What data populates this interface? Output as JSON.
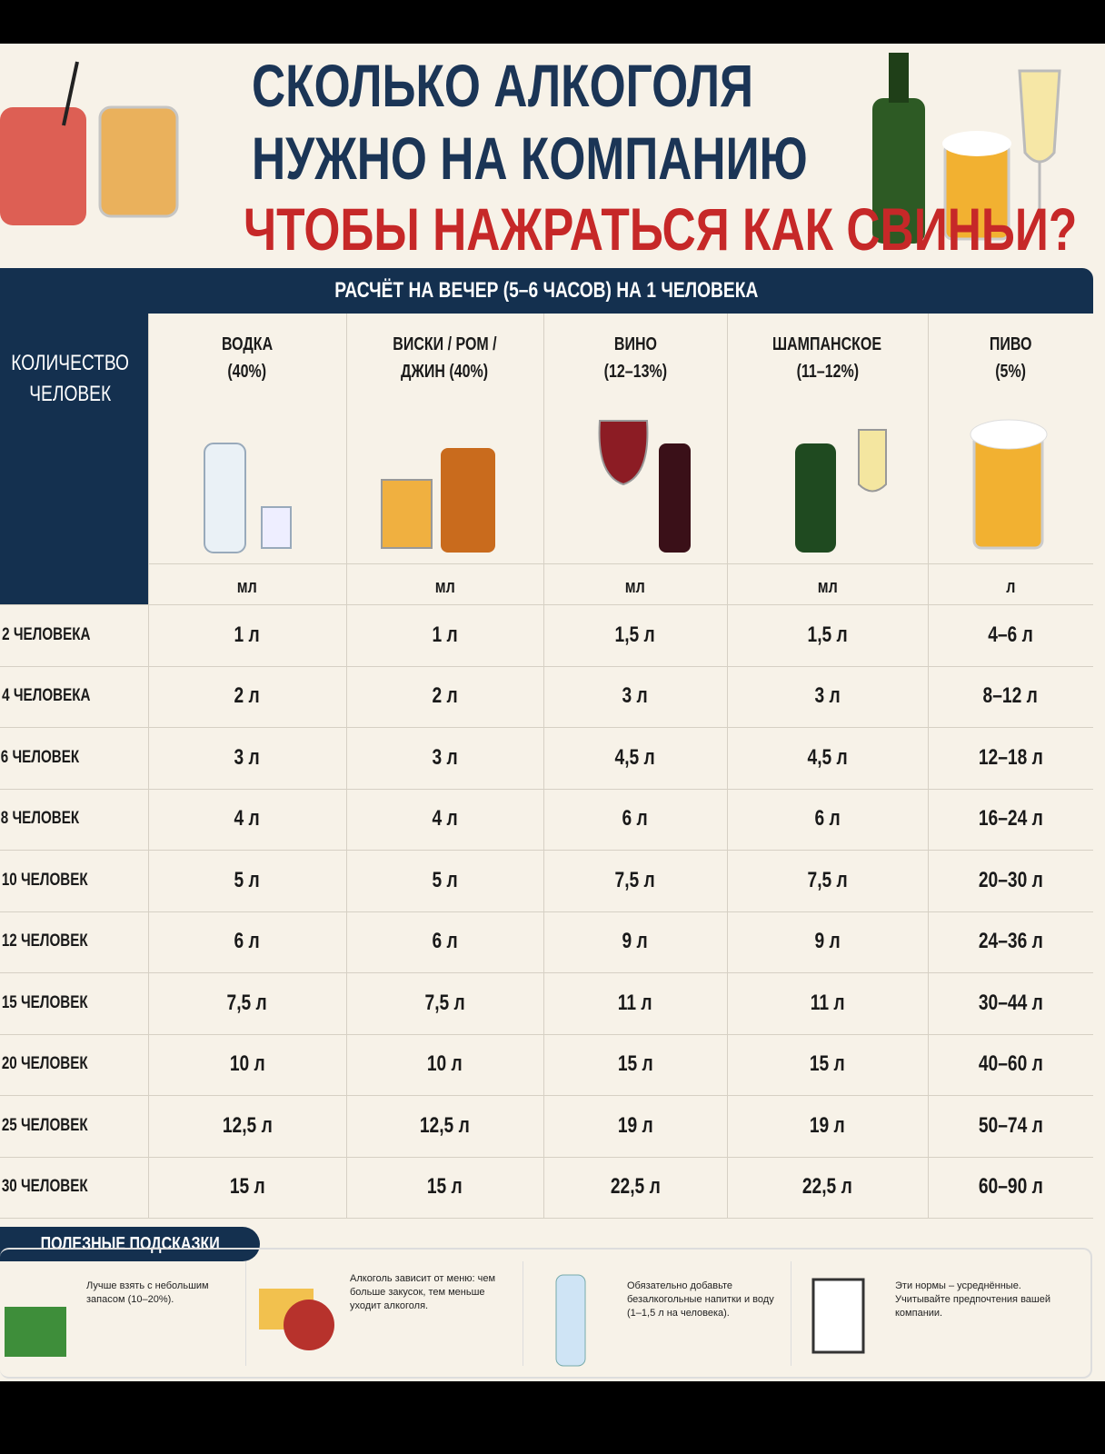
{
  "header": {
    "title_lines": [
      "СКОЛЬКО АЛКОГОЛЯ",
      "НУЖНО НА КОМПАНИЮ",
      "ЧТОБЫ НАЖРАТЬСЯ КАК СВИНЬИ?"
    ]
  },
  "table": {
    "caption": "РАСЧЁТ НА ВЕЧЕР (5–6 ЧАСОВ) НА 1 ЧЕЛОВЕКА",
    "corner": [
      "КОЛИЧЕСТВО",
      "ЧЕЛОВЕК"
    ],
    "columns": [
      {
        "name": "ВОДКА",
        "strength": "(40%)",
        "unit": "мл"
      },
      {
        "name": "ВИСКИ / РОМ /",
        "strength": "ДЖИН (40%)",
        "unit": "мл"
      },
      {
        "name": "ВИНО",
        "strength": "(12–13%)",
        "unit": "мл"
      },
      {
        "name": "ШАМПАНСКОЕ",
        "strength": "(11–12%)",
        "unit": "мл"
      },
      {
        "name": "ПИВО",
        "strength": "(5%)",
        "unit": "л"
      }
    ],
    "rows": [
      [
        "2 ЧЕЛОВЕКА",
        "1 л",
        "1 л",
        "1,5 л",
        "1,5 л",
        "4–6 л"
      ],
      [
        "4 ЧЕЛОВЕКА",
        "2 л",
        "2 л",
        "3 л",
        "3 л",
        "8–12 л"
      ],
      [
        "6 ЧЕЛОВЕК",
        "3 л",
        "3 л",
        "4,5 л",
        "4,5 л",
        "12–18 л"
      ],
      [
        "8 ЧЕЛОВЕК",
        "4 л",
        "4 л",
        "6 л",
        "6 л",
        "16–24 л"
      ],
      [
        "10 ЧЕЛОВЕК",
        "5 л",
        "5 л",
        "7,5 л",
        "7,5 л",
        "20–30 л"
      ],
      [
        "12 ЧЕЛОВЕК",
        "6 л",
        "6 л",
        "9 л",
        "9 л",
        "24–36 л"
      ],
      [
        "15 ЧЕЛОВЕК",
        "7,5 л",
        "7,5 л",
        "11 л",
        "11 л",
        "30–44 л"
      ],
      [
        "20 ЧЕЛОВЕК",
        "10 л",
        "10 л",
        "15 л",
        "15 л",
        "40–60 л"
      ],
      [
        "25 ЧЕЛОВЕК",
        "12,5 л",
        "12,5 л",
        "19 л",
        "19 л",
        "50–74 л"
      ],
      [
        "30 ЧЕЛОВЕК",
        "15 л",
        "15 л",
        "22,5 л",
        "22,5 л",
        "60–90 л"
      ]
    ]
  },
  "tips": {
    "title": "ПОЛЕЗНЫЕ ПОДСКАЗКИ",
    "items": [
      "Лучше взять с небольшим запасом (10–20%).",
      "Алкоголь зависит от меню: чем больше закусок, тем меньше уходит алкоголя.",
      "Обязательно добавьте безалкогольные напитки и воду (1–1,5 л на человека).",
      "Эти нормы – усреднённые. Учитывайте предпочтения вашей компании."
    ]
  }
}
